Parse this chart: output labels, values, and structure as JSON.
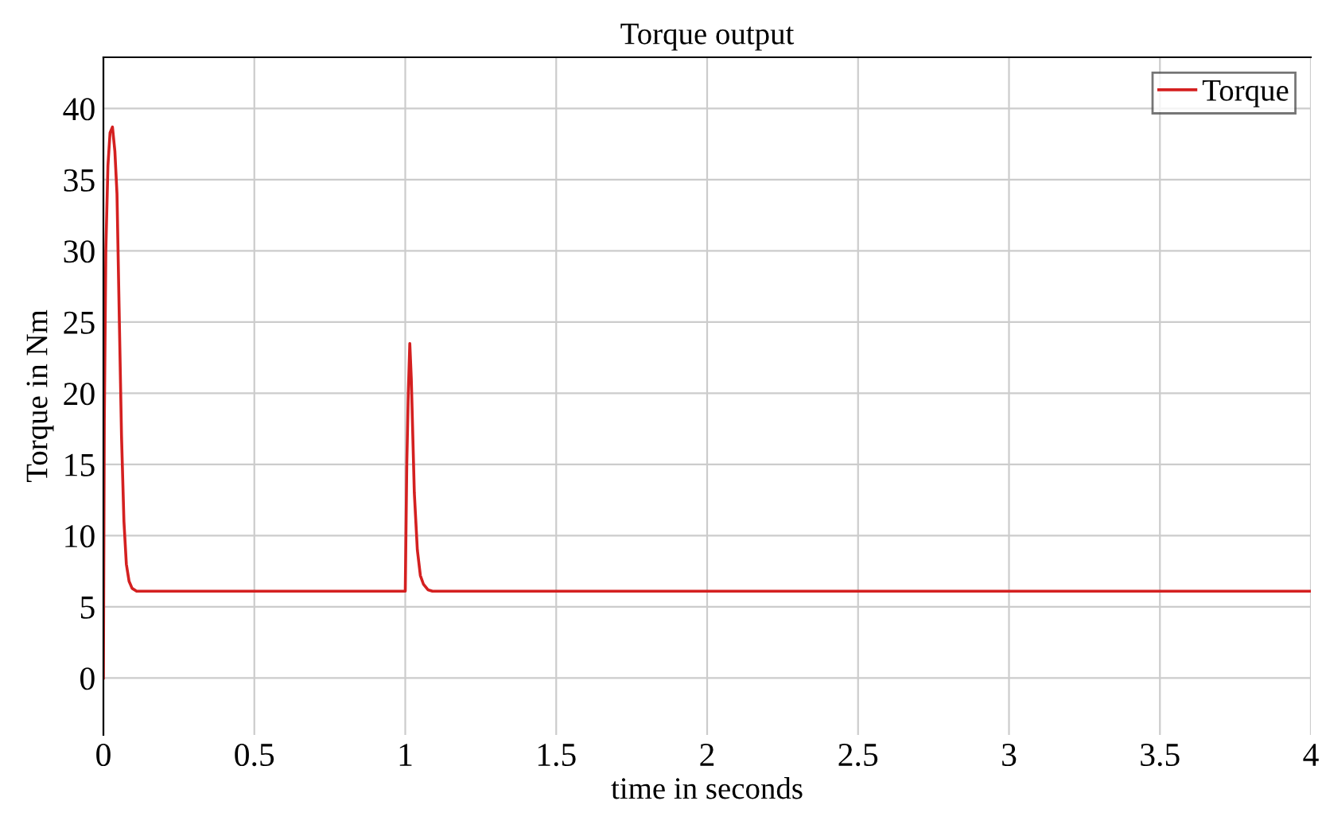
{
  "chart_data": {
    "type": "line",
    "title": "Torque output",
    "xlabel": "time in seconds",
    "ylabel": "Torque in Nm",
    "x": [
      0,
      0.003,
      0.008,
      0.015,
      0.022,
      0.03,
      0.038,
      0.045,
      0.052,
      0.06,
      0.068,
      0.076,
      0.085,
      0.095,
      0.11,
      0.15,
      0.5,
      0.995,
      1.0,
      1.005,
      1.01,
      1.015,
      1.02,
      1.025,
      1.03,
      1.04,
      1.05,
      1.06,
      1.075,
      1.09,
      1.2,
      2,
      3,
      4
    ],
    "series": [
      {
        "name": "Torque",
        "color": "#d42020",
        "values": [
          0,
          18,
          30,
          36,
          38.3,
          38.7,
          37,
          34,
          26,
          17,
          11,
          8,
          6.8,
          6.3,
          6.1,
          6.1,
          6.1,
          6.1,
          6.1,
          15,
          20,
          23.5,
          21,
          17,
          13,
          9,
          7.2,
          6.6,
          6.2,
          6.1,
          6.1,
          6.1,
          6.1,
          6.1
        ]
      }
    ],
    "xlim": [
      0,
      4
    ],
    "ylim": [
      -4,
      43.6
    ],
    "xticks": [
      0,
      0.5,
      1,
      1.5,
      2,
      2.5,
      3,
      3.5,
      4
    ],
    "yticks": [
      0,
      5,
      10,
      15,
      20,
      25,
      30,
      35,
      40
    ],
    "grid": true,
    "legend": "top right",
    "marker": "none",
    "line_style": "solid"
  }
}
